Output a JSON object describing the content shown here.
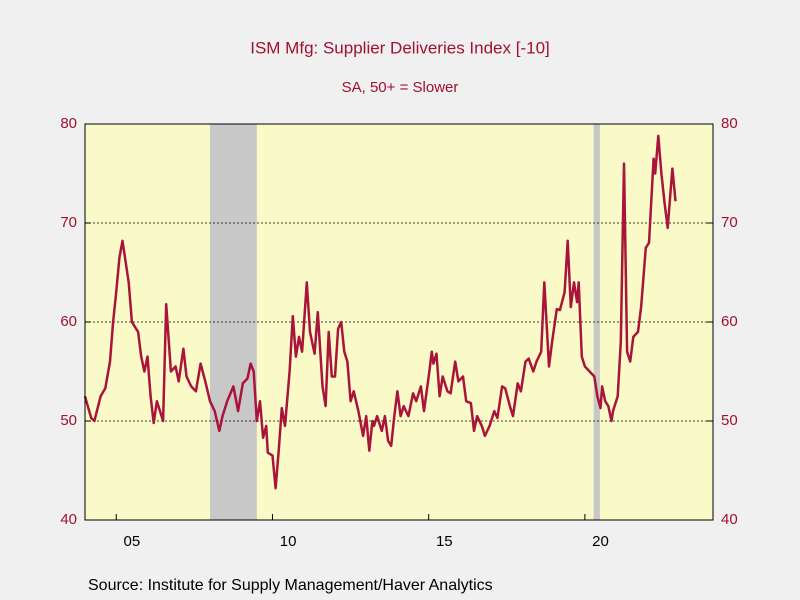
{
  "chart_data": {
    "type": "line",
    "title": "ISM Mfg: Supplier Deliveries Index [-10]",
    "subtitle": "SA, 50+ = Slower",
    "source": "Source:  Institute for Supply Management/Haver Analytics",
    "x": [
      2004.0,
      2004.2,
      2004.3,
      2004.5,
      2004.65,
      2004.8,
      2004.9,
      2005.0,
      2005.1,
      2005.2,
      2005.4,
      2005.5,
      2005.7,
      2005.8,
      2005.9,
      2006.0,
      2006.1,
      2006.2,
      2006.3,
      2006.5,
      2006.6,
      2006.75,
      2006.9,
      2007.0,
      2007.15,
      2007.25,
      2007.4,
      2007.55,
      2007.7,
      2007.85,
      2008.0,
      2008.15,
      2008.3,
      2008.4,
      2008.55,
      2008.75,
      2008.9,
      2009.05,
      2009.2,
      2009.3,
      2009.4,
      2009.5,
      2009.6,
      2009.7,
      2009.8,
      2009.85,
      2010.0,
      2010.1,
      2010.2,
      2010.3,
      2010.4,
      2010.55,
      2010.65,
      2010.75,
      2010.85,
      2010.95,
      2011.1,
      2011.2,
      2011.35,
      2011.45,
      2011.6,
      2011.7,
      2011.8,
      2011.9,
      2012.0,
      2012.1,
      2012.2,
      2012.3,
      2012.4,
      2012.5,
      2012.6,
      2012.75,
      2012.9,
      2013.0,
      2013.1,
      2013.2,
      2013.25,
      2013.35,
      2013.5,
      2013.6,
      2013.7,
      2013.8,
      2013.9,
      2014.0,
      2014.1,
      2014.2,
      2014.35,
      2014.5,
      2014.6,
      2014.75,
      2014.85,
      2015.0,
      2015.1,
      2015.15,
      2015.25,
      2015.35,
      2015.45,
      2015.6,
      2015.7,
      2015.85,
      2015.95,
      2016.1,
      2016.2,
      2016.35,
      2016.45,
      2016.55,
      2016.7,
      2016.8,
      2016.95,
      2017.1,
      2017.2,
      2017.35,
      2017.45,
      2017.6,
      2017.7,
      2017.85,
      2017.95,
      2018.1,
      2018.2,
      2018.35,
      2018.45,
      2018.6,
      2018.7,
      2018.85,
      2018.95,
      2019.1,
      2019.2,
      2019.35,
      2019.45,
      2019.55,
      2019.65,
      2019.75,
      2019.8,
      2019.9,
      2020.0,
      2020.15,
      2020.3,
      2020.4,
      2020.5,
      2020.55,
      2020.65,
      2020.75,
      2020.85,
      2020.9,
      2021.05,
      2021.15,
      2021.25,
      2021.35,
      2021.45,
      2021.55,
      2021.7,
      2021.8,
      2021.95,
      2022.05,
      2022.2,
      2022.25,
      2022.35,
      2022.45,
      2022.55,
      2022.65,
      2022.75,
      2022.8,
      2022.9
    ],
    "series": [
      {
        "name": "ISM Mfg: Supplier Deliveries Index [-10]",
        "color": "#a8143c",
        "values": [
          52.5,
          50.3,
          50,
          52.5,
          53.3,
          56,
          60,
          63,
          66.5,
          68.2,
          64,
          60,
          59,
          56.5,
          55,
          56.5,
          52.5,
          49.8,
          52,
          50,
          61.8,
          55,
          55.5,
          54,
          57.3,
          54.5,
          53.5,
          53,
          55.8,
          54,
          52,
          51,
          49,
          50.5,
          52,
          53.5,
          51,
          53.8,
          54.3,
          55.8,
          55,
          50,
          52,
          48.3,
          49.5,
          46.8,
          46.5,
          43.2,
          47,
          51.3,
          49.5,
          55,
          60.6,
          56.5,
          58.5,
          57,
          64,
          59,
          56.8,
          61,
          53.5,
          51.5,
          59,
          54.5,
          54.5,
          59.3,
          60,
          57,
          56,
          52,
          53,
          51,
          48.5,
          50.5,
          47,
          50,
          49.5,
          50.5,
          49,
          50.5,
          48,
          47.5,
          50.5,
          53,
          50.5,
          51.5,
          50.5,
          52.8,
          52,
          53.5,
          51,
          54.5,
          57,
          55.8,
          56.8,
          52.5,
          54.5,
          53,
          52.8,
          56,
          54,
          54.5,
          52,
          51.8,
          49,
          50.5,
          49.5,
          48.5,
          49.5,
          51,
          50.3,
          53.5,
          53.3,
          51.5,
          50.5,
          53.8,
          53,
          56,
          56.3,
          55,
          56,
          57,
          64,
          55.5,
          58,
          61.3,
          61.2,
          63,
          68.2,
          61.5,
          64,
          62,
          64,
          56.5,
          55.5,
          55,
          54.5,
          52.5,
          51.3,
          53.5,
          52,
          51.5,
          50,
          51,
          52.5,
          58,
          76,
          57,
          56,
          58.5,
          59,
          61.5,
          67.5,
          68,
          76.5,
          75,
          78.8,
          75,
          72,
          69.5,
          73.5,
          75.5,
          72.2
        ]
      }
    ],
    "recessions": [
      [
        2008.0,
        2009.5
      ],
      [
        2020.28,
        2020.48
      ]
    ],
    "xlim": [
      2004.0,
      2024.1
    ],
    "xticks": [
      {
        "value": 2005,
        "label": "05"
      },
      {
        "value": 2010,
        "label": "10"
      },
      {
        "value": 2015,
        "label": "15"
      },
      {
        "value": 2020,
        "label": "20"
      }
    ],
    "ylim": [
      40,
      80
    ],
    "yticks": [
      40,
      50,
      60,
      70,
      80
    ],
    "y2lim": [
      40,
      80
    ],
    "y2ticks": [
      40,
      50,
      60,
      70,
      80
    ],
    "grid": true
  }
}
